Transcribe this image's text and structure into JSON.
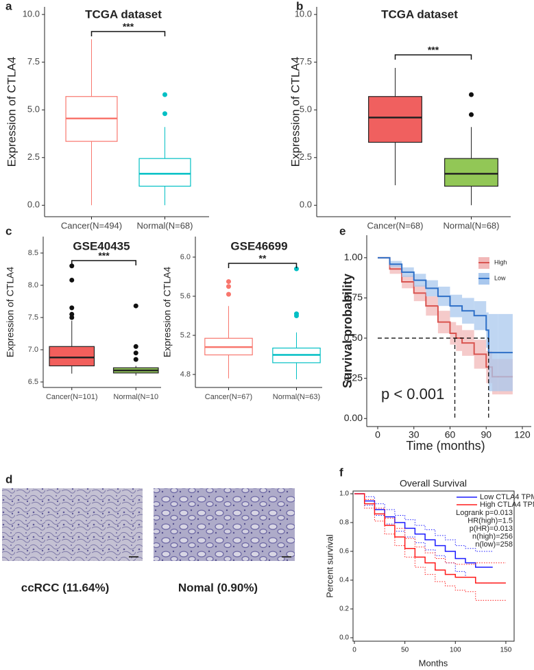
{
  "chart_data": [
    {
      "type": "box",
      "panel": "a",
      "title": "TCGA dataset",
      "y_label": "Expression of CTLA4",
      "categories": [
        "Cancer(N=494)",
        "Normal(N=68)"
      ],
      "colors": [
        "#f8766d",
        "#00bfc4"
      ],
      "filled": false,
      "q1": [
        3.35,
        1.0
      ],
      "median": [
        4.55,
        1.65
      ],
      "q3": [
        5.7,
        2.45
      ],
      "whisker_low": [
        0,
        0
      ],
      "whisker_high": [
        8.7,
        4.1
      ],
      "outliers": [
        [],
        [
          4.8,
          5.8
        ]
      ],
      "significance": "***",
      "ylim": [
        -0.6,
        10.4
      ],
      "yticks": [
        {
          "value": 0,
          "label": "0.0"
        },
        2.5,
        {
          "value": 5,
          "label": "5.0"
        },
        7.5,
        {
          "value": 10,
          "label": "10.0"
        }
      ]
    },
    {
      "type": "box",
      "panel": "b",
      "title": "TCGA dataset",
      "y_label": "Expression of CTLA4",
      "categories": [
        "Cancer(N=68)",
        "Normal(N=68)"
      ],
      "colors": [
        "#f0605f",
        "#92c756"
      ],
      "filled": true,
      "q1": [
        3.3,
        1.0
      ],
      "median": [
        4.6,
        1.65
      ],
      "q3": [
        5.7,
        2.45
      ],
      "whisker_low": [
        1.05,
        0
      ],
      "whisker_high": [
        7.2,
        4.1
      ],
      "outliers": [
        [],
        [
          4.75,
          5.8
        ]
      ],
      "significance": "***",
      "ylim": [
        -0.6,
        10.4
      ],
      "yticks": [
        {
          "value": 0,
          "label": "0.0"
        },
        2.5,
        {
          "value": 5,
          "label": "5.0"
        },
        7.5,
        {
          "value": 10,
          "label": "10.0"
        }
      ]
    },
    {
      "type": "box",
      "panel": "c",
      "title": "GSE40435",
      "y_label": "Expression of CTLA4",
      "categories": [
        "Cancer(N=101)",
        "Normal(N=10"
      ],
      "colors": [
        "#f25f5c",
        "#93c75a"
      ],
      "filled": true,
      "q1": [
        6.75,
        6.64
      ],
      "median": [
        6.88,
        6.68
      ],
      "q3": [
        7.05,
        6.72
      ],
      "whisker_low": [
        6.63,
        6.6
      ],
      "whisker_high": [
        7.45,
        6.75
      ],
      "outliers": [
        [
          7.5,
          7.55,
          7.65,
          8.08,
          8.3
        ],
        [
          6.85,
          6.95,
          7.05,
          7.68
        ]
      ],
      "significance": "***",
      "ylim": [
        6.415,
        8.755
      ],
      "yticks": [
        6.5,
        {
          "value": 7,
          "label": "7.0"
        },
        7.5,
        {
          "value": 8,
          "label": "8.0"
        },
        8.5
      ]
    },
    {
      "type": "box",
      "title": "GSE46699",
      "y_label": "Expression of CTLA4",
      "categories": [
        "Cancer(N=67)",
        "Normal(N=63)"
      ],
      "colors": [
        "#f8766d",
        "#00bfc4"
      ],
      "filled": false,
      "q1": [
        5.0,
        4.92
      ],
      "median": [
        5.08,
        5.0
      ],
      "q3": [
        5.17,
        5.07
      ],
      "whisker_low": [
        4.76,
        4.75
      ],
      "whisker_high": [
        5.5,
        5.23
      ],
      "outliers": [
        [
          5.62,
          5.7,
          5.75
        ],
        [
          5.4,
          5.42,
          5.88
        ]
      ],
      "significance": "**",
      "ylim": [
        4.667,
        6.21
      ],
      "yticks": [
        4.8,
        5.2,
        5.6,
        {
          "value": 6,
          "label": "6.0"
        }
      ]
    },
    {
      "type": "survival",
      "panel": "e",
      "frame": "axes",
      "ci_style": "band",
      "legend": "top-right",
      "x_label": "Time (months)",
      "y_label": "Survival probability",
      "p_text": "p < 0.001",
      "median_level": 0.5,
      "median_times": [
        64,
        92
      ],
      "series": [
        {
          "name": "High",
          "color": "#d9534f",
          "band_color": "#f2b8b8",
          "x": [
            0,
            10,
            20,
            30,
            40,
            50,
            60,
            65,
            70,
            80,
            90,
            95,
            100,
            112
          ],
          "values": [
            1,
            0.93,
            0.85,
            0.78,
            0.7,
            0.6,
            0.53,
            0.5,
            0.47,
            0.4,
            0.32,
            0.26,
            0.26,
            0.26
          ],
          "upper": [
            1,
            0.96,
            0.89,
            0.83,
            0.76,
            0.67,
            0.6,
            0.58,
            0.55,
            0.49,
            0.42,
            0.37,
            0.37,
            0.37
          ],
          "lower": [
            1,
            0.9,
            0.81,
            0.73,
            0.64,
            0.53,
            0.46,
            0.42,
            0.39,
            0.31,
            0.22,
            0.15,
            0.15,
            0.15
          ]
        },
        {
          "name": "Low",
          "color": "#2e6fc7",
          "band_color": "#a9c8ee",
          "x": [
            0,
            10,
            20,
            30,
            40,
            50,
            60,
            70,
            80,
            90,
            92,
            100,
            112
          ],
          "values": [
            1,
            0.96,
            0.91,
            0.86,
            0.81,
            0.76,
            0.7,
            0.67,
            0.64,
            0.55,
            0.41,
            0.41,
            0.41
          ],
          "upper": [
            1,
            0.98,
            0.94,
            0.9,
            0.86,
            0.82,
            0.77,
            0.75,
            0.73,
            0.66,
            0.65,
            0.65,
            0.65
          ],
          "lower": [
            1,
            0.94,
            0.88,
            0.82,
            0.76,
            0.7,
            0.63,
            0.59,
            0.55,
            0.44,
            0.17,
            0.17,
            0.17
          ]
        }
      ],
      "xlim": [
        -9.1,
        127.4
      ],
      "xticks": [
        0,
        30,
        60,
        90,
        120
      ],
      "ylim": [
        -0.05,
        1.14
      ],
      "yticks": [
        {
          "value": 0,
          "label": "0.00"
        },
        0.25,
        {
          "value": 0.5,
          "label": "0.50"
        },
        0.75,
        {
          "value": 1,
          "label": "1.00"
        }
      ]
    },
    {
      "type": "survival",
      "panel": "f",
      "frame": "box",
      "ci_style": "dotted",
      "legend": "top-right",
      "title": "Overall Survival",
      "x_label": "Months",
      "y_label": "Percent survival",
      "annotations": [
        "Logrank p=0.013",
        "HR(high)=1.5",
        "p(HR)=0.013",
        "n(high)=256",
        "n(low)=258"
      ],
      "series": [
        {
          "name": "Low CTLA4 TPM",
          "color": "#1a1aff",
          "x": [
            0,
            10,
            20,
            30,
            40,
            50,
            60,
            70,
            80,
            90,
            100,
            110,
            120,
            137
          ],
          "values": [
            1,
            0.95,
            0.89,
            0.84,
            0.8,
            0.76,
            0.72,
            0.68,
            0.64,
            0.6,
            0.55,
            0.52,
            0.49,
            0.49
          ],
          "upper": [
            1,
            0.98,
            0.93,
            0.89,
            0.85,
            0.82,
            0.78,
            0.75,
            0.71,
            0.68,
            0.64,
            0.62,
            0.6,
            0.6
          ],
          "lower": [
            1,
            0.92,
            0.85,
            0.79,
            0.74,
            0.7,
            0.66,
            0.61,
            0.57,
            0.52,
            0.46,
            0.42,
            0.38,
            0.38
          ]
        },
        {
          "name": "High CTLA4 TPM",
          "color": "#ff1a1a",
          "x": [
            0,
            10,
            20,
            30,
            40,
            50,
            60,
            70,
            80,
            90,
            100,
            110,
            120,
            150
          ],
          "values": [
            1,
            0.93,
            0.86,
            0.78,
            0.7,
            0.62,
            0.56,
            0.52,
            0.47,
            0.44,
            0.42,
            0.42,
            0.38,
            0.38
          ],
          "upper": [
            1,
            0.96,
            0.9,
            0.83,
            0.76,
            0.69,
            0.63,
            0.59,
            0.55,
            0.52,
            0.51,
            0.51,
            0.52,
            0.52
          ],
          "lower": [
            1,
            0.9,
            0.81,
            0.72,
            0.64,
            0.56,
            0.49,
            0.44,
            0.39,
            0.36,
            0.33,
            0.32,
            0.26,
            0.26
          ]
        }
      ],
      "xlim": [
        -1.36,
        158.2
      ],
      "xticks": [
        0,
        50,
        100,
        150
      ],
      "ylim": [
        -0.024,
        1.019
      ],
      "yticks": [
        {
          "value": 0,
          "label": "0.0"
        },
        0.2,
        0.4,
        0.6,
        0.8,
        {
          "value": 1,
          "label": "1.0"
        }
      ]
    }
  ],
  "images": {
    "panel": "d",
    "captions": [
      "ccRCC (11.64%)",
      "Nomal (0.90%)"
    ]
  }
}
